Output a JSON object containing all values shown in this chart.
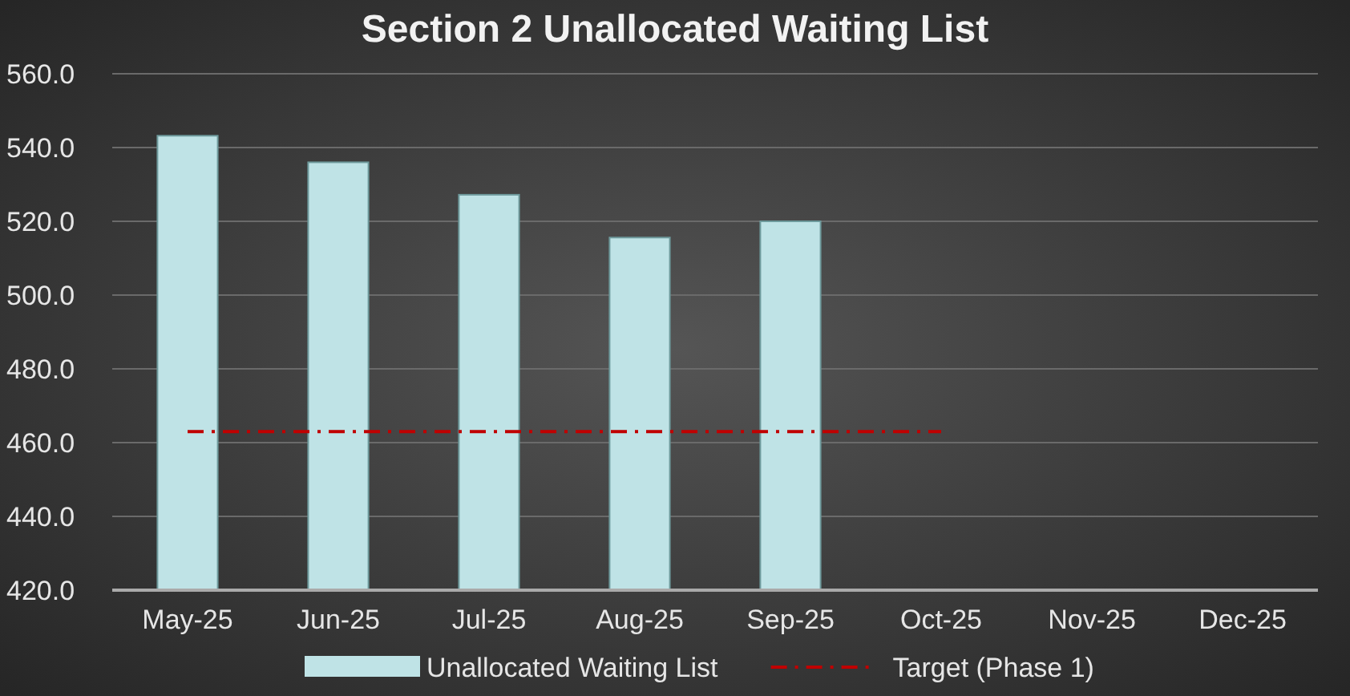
{
  "chart_data": {
    "type": "bar",
    "title": "Section 2 Unallocated Waiting List",
    "categories": [
      "May-25",
      "Jun-25",
      "Jul-25",
      "Aug-25",
      "Sep-25",
      "Oct-25",
      "Nov-25",
      "Dec-25"
    ],
    "series": [
      {
        "name": "Unallocated Waiting List",
        "color": "#bfe3e6",
        "values": [
          543.2,
          536,
          527.2,
          515.6,
          520,
          null,
          null,
          null
        ]
      },
      {
        "name": "Target (Phase 1)",
        "type": "line",
        "color": "#c00000",
        "line_style": "dashed",
        "marker": "none",
        "values": [
          463,
          463,
          463,
          463,
          463,
          463,
          null,
          null
        ]
      }
    ],
    "ylim": [
      420,
      560
    ],
    "yticks": [
      {
        "value": 420,
        "label": "420.0"
      },
      {
        "value": 440,
        "label": "440.0"
      },
      {
        "value": 460,
        "label": "460.0"
      },
      {
        "value": 480,
        "label": "480.0"
      },
      {
        "value": 500,
        "label": "500.0"
      },
      {
        "value": 520,
        "label": "520.0"
      },
      {
        "value": 540,
        "label": "540.0"
      },
      {
        "value": 560,
        "label": "560.0"
      }
    ],
    "grid": "y",
    "legend": "bottom"
  }
}
